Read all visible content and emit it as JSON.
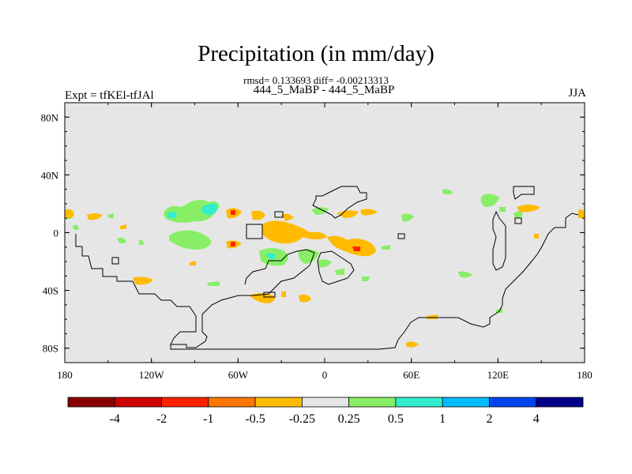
{
  "title": "Precipitation (in mm/day)",
  "stats": "rmsd= 0.133693 diff= -0.00213313",
  "runs": "444_5_MaBP - 444_5_MaBP",
  "expt": "Expt = tfKEl-tfJAl",
  "season": "JJA",
  "lat_ticks": [
    "80N",
    "40N",
    "0",
    "40S",
    "80S"
  ],
  "lon_ticks": [
    "180",
    "120W",
    "60W",
    "0",
    "60E",
    "120E",
    "180"
  ],
  "colorbar": {
    "colors": [
      "#8b0000",
      "#cc0000",
      "#ff2200",
      "#ff7700",
      "#ffbb00",
      "#e6e6e6",
      "#88ee66",
      "#33eecc",
      "#00bbff",
      "#0044ee",
      "#000088"
    ],
    "labels": [
      "-4",
      "-2",
      "-1",
      "-0.5",
      "-0.25",
      "0.25",
      "0.5",
      "1",
      "2",
      "4"
    ]
  },
  "map": {
    "background": "#e6e6e6",
    "positive_color": "#88ee66",
    "positive_strong_color": "#33eecc",
    "negative_color": "#ffbb00",
    "negative_strong_color": "#ff7700",
    "negative_peak_color": "#ff2200"
  }
}
